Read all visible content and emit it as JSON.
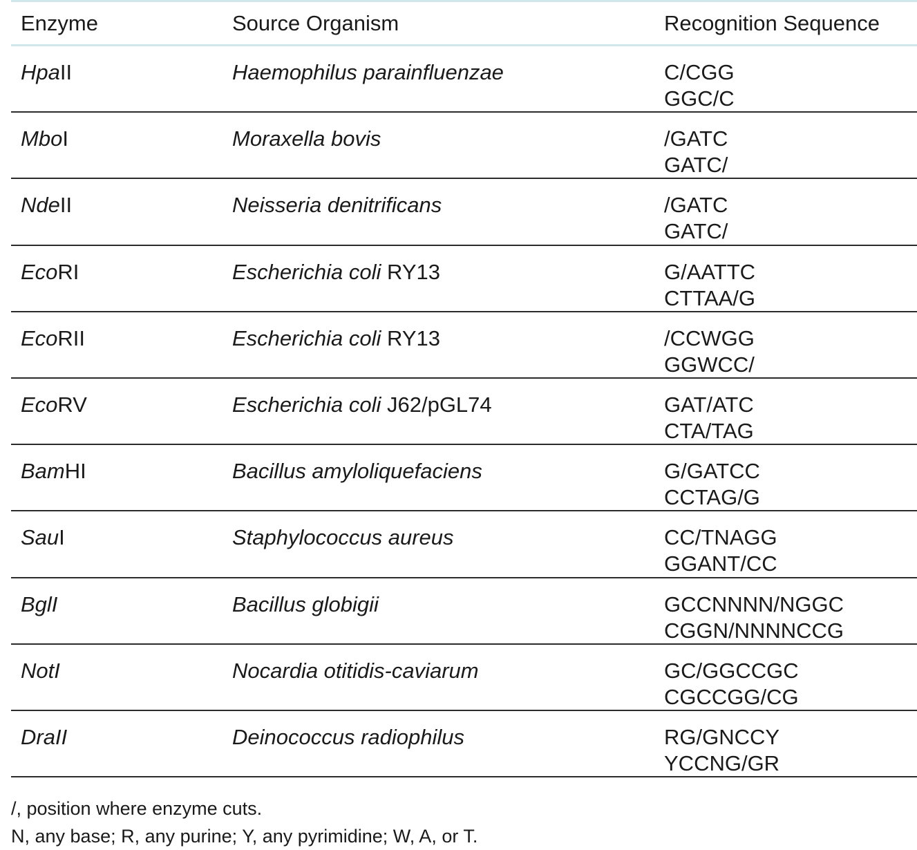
{
  "headers": {
    "enzyme": "Enzyme",
    "source": "Source Organism",
    "sequence": "Recognition Sequence"
  },
  "rows": [
    {
      "enzyme_italic": "Hpa",
      "enzyme_roman": "II",
      "source_italic": "Haemophilus parainfluenzae",
      "source_roman": "",
      "seq_top": "C/CGG",
      "seq_bottom": "GGC/C"
    },
    {
      "enzyme_italic": "Mbo",
      "enzyme_roman": "I",
      "source_italic": "Moraxella bovis",
      "source_roman": "",
      "seq_top": "/GATC",
      "seq_bottom": "GATC/"
    },
    {
      "enzyme_italic": "Nde",
      "enzyme_roman": "II",
      "source_italic": "Neisseria denitrificans",
      "source_roman": "",
      "seq_top": "/GATC",
      "seq_bottom": "GATC/"
    },
    {
      "enzyme_italic": "Eco",
      "enzyme_roman": "RI",
      "source_italic": "Escherichia coli",
      "source_roman": " RY13",
      "seq_top": "G/AATTC",
      "seq_bottom": "CTTAA/G"
    },
    {
      "enzyme_italic": "Eco",
      "enzyme_roman": "RII",
      "source_italic": "Escherichia coli",
      "source_roman": " RY13",
      "seq_top": "/CCWGG",
      "seq_bottom": "GGWCC/"
    },
    {
      "enzyme_italic": "Eco",
      "enzyme_roman": "RV",
      "source_italic": "Escherichia coli",
      "source_roman": " J62/pGL74",
      "seq_top": "GAT/ATC",
      "seq_bottom": "CTA/TAG"
    },
    {
      "enzyme_italic": "Bam",
      "enzyme_roman": "HI",
      "source_italic": "Bacillus amyloliquefaciens",
      "source_roman": "",
      "seq_top": "G/GATCC",
      "seq_bottom": "CCTAG/G"
    },
    {
      "enzyme_italic": "Sau",
      "enzyme_roman": "I",
      "source_italic": "Staphylococcus aureus",
      "source_roman": "",
      "seq_top": "CC/TNAGG",
      "seq_bottom": "GGANT/CC"
    },
    {
      "enzyme_italic": "BglI",
      "enzyme_roman": "",
      "source_italic": "Bacillus globigii",
      "source_roman": "",
      "seq_top": "GCCNNNN/NGGC",
      "seq_bottom": "CGGN/NNNNCCG"
    },
    {
      "enzyme_italic": "NotI",
      "enzyme_roman": "",
      "source_italic": "Nocardia otitidis-caviarum",
      "source_roman": "",
      "seq_top": "GC/GGCCGC",
      "seq_bottom": "CGCCGG/CG"
    },
    {
      "enzyme_italic": "DraII",
      "enzyme_roman": "",
      "source_italic": "Deinococcus radiophilus",
      "source_roman": "",
      "seq_top": "RG/GNCCY",
      "seq_bottom": "YCCNG/GR"
    }
  ],
  "footnotes": [
    "/, position where enzyme cuts.",
    "N, any base; R, any purine; Y, any pyrimidine; W, A, or T."
  ]
}
